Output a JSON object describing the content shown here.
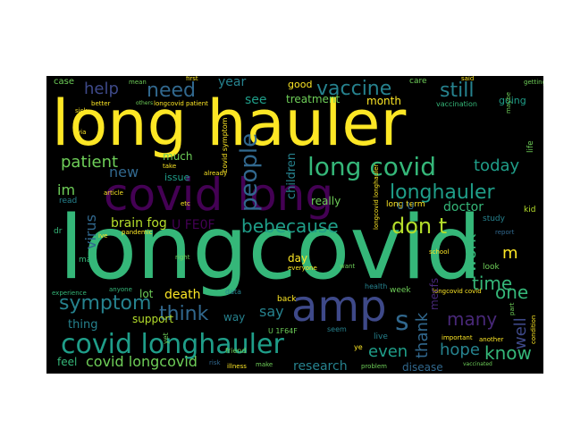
{
  "colors": {
    "background": "#000000",
    "page": "#ffffff",
    "palette": [
      "#fde725",
      "#35b779",
      "#1f9e89",
      "#26828e",
      "#31688e",
      "#3e4989",
      "#482878",
      "#440154",
      "#6ece58",
      "#b5de2b"
    ]
  },
  "words": {
    "longcovid": "longcovid",
    "long_hauler": "long hauler",
    "covid_long": "covid long",
    "amp": "amp",
    "covid_longhauler": "covid longhauler",
    "long_covid": "long covid",
    "people": "people",
    "longhauler": "longhauler",
    "vaccine": "vaccine",
    "need": "need",
    "help": "help",
    "still": "still",
    "patient": "patient",
    "bebecause": "bebecause",
    "dont": "don t",
    "work": "work",
    "many": "many",
    "know": "know",
    "symptom": "symptom",
    "think": "think",
    "time": "time",
    "today": "today",
    "thank": "thank",
    "hope": "hope",
    "one": "one",
    "covid_longcovid": "covid longcovid",
    "s": "s",
    "virus": "virus",
    "new": "new",
    "im": "im",
    "brain_fog": "brain fog",
    "say": "say",
    "even": "even",
    "research": "research",
    "well": "well",
    "year": "year",
    "see": "see",
    "children": "children",
    "month": "month",
    "treatment": "treatment",
    "really": "really",
    "doctor": "doctor",
    "death": "death",
    "support": "support",
    "lot": "lot",
    "thing": "thing",
    "feel": "feel",
    "disease": "disease",
    "way": "way",
    "day": "day",
    "m": "m",
    "u_fe0f": "U FE0F",
    "long_term": "long term",
    "much": "much",
    "issue": "issue",
    "good": "good",
    "case": "case",
    "longcovid_patient": "longcovid patient",
    "covid_symptom": "covid symptom",
    "going": "going",
    "care": "care",
    "vaccination": "vaccination",
    "study": "study",
    "kid": "kid",
    "report": "report",
    "look": "look",
    "longcovid_covid": "longcovid covid",
    "week": "week",
    "live": "live",
    "health": "health",
    "problem": "problem",
    "illness": "illness",
    "friend": "friend",
    "data": "data",
    "risk": "risk",
    "anyone": "anyone",
    "experience": "experience",
    "mecfs": "mecfs",
    "u_1f64f": "U 1F64F",
    "important": "important",
    "another": "another",
    "seem": "seem",
    "back": "back",
    "make": "make",
    "everyone": "everyone",
    "want": "want",
    "school": "school",
    "pandemic": "pandemic",
    "better": "better",
    "sick": "sick",
    "mean": "mean",
    "first": "first",
    "said": "said",
    "getting": "getting",
    "take": "take",
    "already": "already",
    "article": "article",
    "etc": "etc",
    "read": "read",
    "dr": "dr",
    "may": "may",
    "right": "right",
    "others": "others",
    "ive": "ive",
    "life": "life",
    "maybe": "maybe",
    "yet": "yet",
    "ye": "ye",
    "condition": "condition",
    "part": "part",
    "u_u": "U U",
    "longcovid_longhauler": "longcovid longhauler",
    "via": "via",
    "vaccinated": "vaccinated"
  }
}
